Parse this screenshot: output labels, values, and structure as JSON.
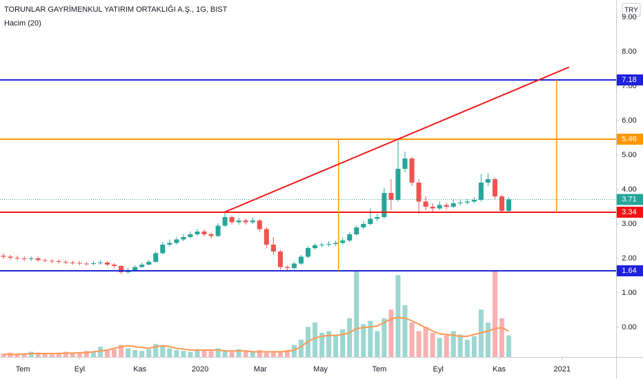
{
  "chart_data": {
    "type": "candlestick",
    "title": "TORUNLAR GAYRİMENKUL YATIRIM ORTAKLIĞI A.Ş., 1G, BIST",
    "subtitle": "Hacim (20)",
    "currency": "TRY",
    "up_color": "#26a69a",
    "down_color": "#ef5350",
    "open": [
      2.08,
      2.05,
      2.02,
      2.0,
      1.98,
      2.0,
      1.95,
      1.93,
      1.92,
      1.9,
      1.88,
      1.87,
      1.85,
      1.84,
      1.86,
      1.88,
      1.82,
      1.78,
      1.6,
      1.66,
      1.75,
      1.82,
      1.9,
      2.15,
      2.4,
      2.45,
      2.55,
      2.62,
      2.7,
      2.78,
      2.7,
      2.65,
      2.95,
      3.2,
      3.05,
      3.1,
      3.05,
      3.1,
      2.85,
      2.4,
      2.2,
      1.75,
      1.72,
      1.85,
      2.05,
      2.3,
      2.38,
      2.4,
      2.42,
      2.45,
      2.52,
      2.7,
      2.9,
      3.0,
      3.15,
      3.2,
      3.9,
      3.7,
      4.6,
      4.9,
      4.2,
      3.65,
      3.5,
      3.45,
      3.55,
      3.5,
      3.6,
      3.62,
      3.65,
      3.7,
      4.2,
      4.3,
      3.8,
      3.38
    ],
    "high": [
      2.15,
      2.1,
      2.08,
      2.06,
      2.06,
      2.06,
      2.0,
      1.98,
      1.97,
      1.95,
      1.93,
      1.92,
      1.9,
      1.92,
      1.95,
      1.92,
      1.86,
      1.8,
      1.72,
      1.8,
      1.88,
      1.96,
      2.2,
      2.48,
      2.55,
      2.62,
      2.7,
      2.78,
      2.86,
      2.84,
      2.75,
      3.02,
      3.34,
      3.24,
      3.18,
      3.16,
      3.2,
      3.14,
      2.9,
      2.62,
      2.25,
      1.8,
      1.9,
      2.1,
      2.36,
      2.44,
      2.46,
      2.5,
      2.52,
      2.6,
      2.76,
      2.96,
      3.08,
      3.45,
      3.3,
      4.05,
      4.3,
      5.46,
      5.1,
      4.95,
      4.3,
      3.8,
      3.6,
      3.65,
      3.62,
      3.7,
      3.7,
      3.72,
      3.78,
      4.45,
      4.48,
      4.35,
      3.85,
      3.78
    ],
    "low": [
      1.98,
      1.96,
      1.94,
      1.92,
      1.92,
      1.9,
      1.88,
      1.86,
      1.85,
      1.83,
      1.82,
      1.8,
      1.79,
      1.8,
      1.82,
      1.77,
      1.72,
      1.55,
      1.56,
      1.62,
      1.72,
      1.8,
      1.88,
      2.12,
      2.35,
      2.4,
      2.5,
      2.58,
      2.65,
      2.64,
      2.58,
      2.62,
      2.92,
      2.98,
      2.98,
      2.98,
      3.0,
      2.78,
      2.3,
      2.1,
      1.68,
      1.64,
      1.68,
      1.82,
      2.0,
      2.25,
      2.32,
      2.34,
      2.36,
      2.4,
      2.48,
      2.66,
      2.85,
      2.96,
      3.08,
      3.15,
      3.4,
      3.65,
      4.5,
      4.1,
      3.3,
      3.4,
      3.36,
      3.4,
      3.42,
      3.45,
      3.54,
      3.56,
      3.6,
      3.65,
      4.1,
      3.7,
      3.32,
      3.34
    ],
    "close": [
      2.05,
      2.02,
      2.0,
      1.98,
      2.0,
      1.95,
      1.93,
      1.92,
      1.9,
      1.88,
      1.87,
      1.85,
      1.84,
      1.86,
      1.88,
      1.82,
      1.78,
      1.6,
      1.66,
      1.75,
      1.82,
      1.9,
      2.15,
      2.4,
      2.45,
      2.55,
      2.62,
      2.7,
      2.78,
      2.7,
      2.65,
      2.95,
      3.2,
      3.05,
      3.1,
      3.05,
      3.1,
      2.85,
      2.4,
      2.2,
      1.75,
      1.72,
      1.85,
      2.05,
      2.3,
      2.38,
      2.4,
      2.42,
      2.45,
      2.52,
      2.7,
      2.9,
      3.0,
      3.15,
      3.2,
      3.9,
      3.7,
      4.6,
      4.9,
      4.2,
      3.65,
      3.5,
      3.45,
      3.55,
      3.5,
      3.6,
      3.62,
      3.65,
      3.7,
      4.2,
      4.3,
      3.8,
      3.38,
      3.71
    ],
    "volume": {
      "color": "#ff9850",
      "values": [
        4,
        5,
        3,
        4,
        6,
        5,
        4,
        3,
        5,
        6,
        4,
        5,
        7,
        6,
        12,
        8,
        9,
        14,
        10,
        8,
        7,
        9,
        15,
        13,
        10,
        8,
        7,
        6,
        9,
        8,
        7,
        10,
        8,
        6,
        9,
        7,
        6,
        8,
        5,
        6,
        7,
        8,
        14,
        20,
        35,
        40,
        28,
        30,
        26,
        32,
        45,
        100,
        38,
        42,
        30,
        45,
        55,
        95,
        60,
        40,
        30,
        35,
        28,
        22,
        25,
        30,
        26,
        20,
        24,
        55,
        40,
        100,
        45,
        25
      ],
      "ma": [
        3,
        3,
        3,
        3.5,
        4,
        4,
        4,
        4,
        4,
        4.5,
        4.5,
        5,
        5,
        6,
        7,
        8,
        10,
        12,
        13,
        12,
        11,
        10,
        12,
        13,
        12,
        10,
        9,
        8,
        8,
        8,
        8,
        8,
        7,
        7,
        7,
        7,
        6,
        6,
        6,
        6,
        6,
        6.5,
        8,
        12,
        18,
        22,
        24,
        25,
        25,
        26,
        28,
        33,
        34,
        35,
        36,
        40,
        44,
        46,
        45,
        42,
        38,
        34,
        30,
        27,
        26,
        25,
        24,
        24,
        26,
        28,
        30,
        33,
        34,
        30
      ]
    },
    "ylim": [
      -0.86,
      9.5
    ],
    "yticks": [
      {
        "value": 0,
        "label": "0.00"
      },
      {
        "value": 1,
        "label": "1.00"
      },
      {
        "value": 2,
        "label": "2.00"
      },
      {
        "value": 3,
        "label": "3.00"
      },
      {
        "value": 4,
        "label": "4.00"
      },
      {
        "value": 5,
        "label": "5.00"
      },
      {
        "value": 6,
        "label": "6.00"
      },
      {
        "value": 7,
        "label": "7.00"
      },
      {
        "value": 8,
        "label": "8.00"
      },
      {
        "value": 9,
        "label": "9.00"
      }
    ],
    "y2lim": [
      0,
      100
    ],
    "xlim": [
      0,
      89
    ],
    "xticks": [
      {
        "value": 3.3,
        "label": "Tem"
      },
      {
        "value": 11.5,
        "label": "Eyl"
      },
      {
        "value": 20.2,
        "label": "Kas"
      },
      {
        "value": 28.9,
        "label": "2020"
      },
      {
        "value": 37.6,
        "label": "Mar"
      },
      {
        "value": 46.3,
        "label": "May"
      },
      {
        "value": 54.8,
        "label": "Tem"
      },
      {
        "value": 63.3,
        "label": "Eyl"
      },
      {
        "value": 72.1,
        "label": "Kas"
      },
      {
        "value": 81.2,
        "label": "2021"
      }
    ],
    "levels": [
      {
        "value": 7.18,
        "color": "#1e22d8"
      },
      {
        "value": 5.46,
        "color": "#ff9800"
      },
      {
        "value": 3.34,
        "color": "#f21414"
      },
      {
        "value": 1.64,
        "color": "#1e22d8"
      }
    ],
    "last_price": 3.71,
    "trendline": {
      "color": "#f21414",
      "x": [
        32.4,
        82.2
      ],
      "y": [
        3.34,
        7.55
      ]
    },
    "verticals": [
      {
        "color": "#ff9800",
        "x": 48.9,
        "y": [
          5.46,
          1.64
        ]
      },
      {
        "color": "#ff9800",
        "x": 80.4,
        "y": [
          7.18,
          3.34
        ]
      }
    ]
  }
}
